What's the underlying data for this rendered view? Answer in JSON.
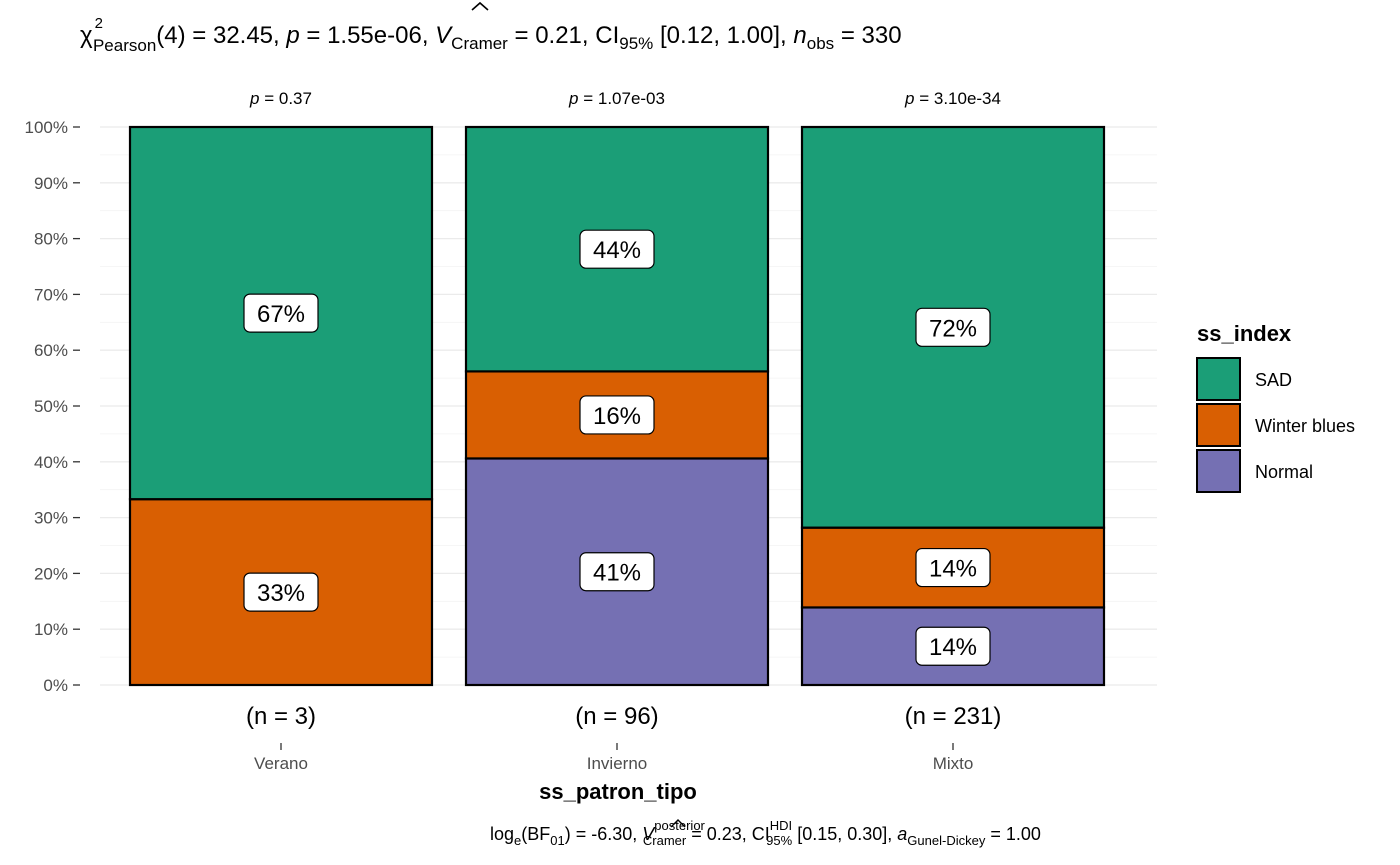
{
  "chart_data": {
    "type": "bar",
    "stacked": true,
    "percent": true,
    "title_parts": {
      "chi": "χ",
      "chi_sup": "2",
      "chi_sub": "Pearson",
      "stat": "(4) = 32.45, ",
      "p_sym": "p",
      "p_val": " = 1.55e-06, ",
      "v_sym": "V",
      "v_sub": "Cramer",
      "v_val": " = 0.21, CI",
      "ci_sub": "95%",
      "ci_val": " [0.12, 1.00], ",
      "n_sym": "n",
      "n_sub": "obs",
      "n_val": " = 330"
    },
    "xlabel": "ss_patron_tipo",
    "ylim": [
      0,
      100
    ],
    "y_ticks": [
      "0%",
      "10%",
      "20%",
      "30%",
      "40%",
      "50%",
      "60%",
      "70%",
      "80%",
      "90%",
      "100%"
    ],
    "categories": [
      "Verano",
      "Invierno",
      "Mixto"
    ],
    "counts": [
      "(n = 3)",
      "(n = 96)",
      "(n = 231)"
    ],
    "pvalues": [
      {
        "sym": "p",
        "val": " = 0.37"
      },
      {
        "sym": "p",
        "val": " = 1.07e-03"
      },
      {
        "sym": "p",
        "val": " = 3.10e-34"
      }
    ],
    "series": [
      {
        "name": "Normal",
        "color": "#7570b3",
        "values": [
          0,
          40.6,
          13.9
        ],
        "labels": [
          "",
          "41%",
          "14%"
        ]
      },
      {
        "name": "Winter blues",
        "color": "#d95f02",
        "values": [
          33.3,
          15.6,
          14.3
        ],
        "labels": [
          "33%",
          "16%",
          "14%"
        ]
      },
      {
        "name": "SAD",
        "color": "#1b9e77",
        "values": [
          66.7,
          43.8,
          71.8
        ],
        "labels": [
          "67%",
          "44%",
          "72%"
        ]
      }
    ],
    "legend": {
      "title": "ss_index",
      "position": "right",
      "order": [
        "SAD",
        "Winter blues",
        "Normal"
      ]
    },
    "grid": true,
    "caption_parts": {
      "log": "log",
      "log_sub": "e",
      "bf": "(BF",
      "bf_sub": "01",
      "bf_val": ") = -6.30, ",
      "v_sym": "V",
      "v_sup": "posterior",
      "v_sub": "Cramer",
      "v_val": " = 0.23, CI",
      "ci_sup": "HDI",
      "ci_sub": "95%",
      "ci_val": " [0.15, 0.30], ",
      "a_sym": "a",
      "a_sub": "Gunel-Dickey",
      "a_val": " = 1.00"
    }
  }
}
